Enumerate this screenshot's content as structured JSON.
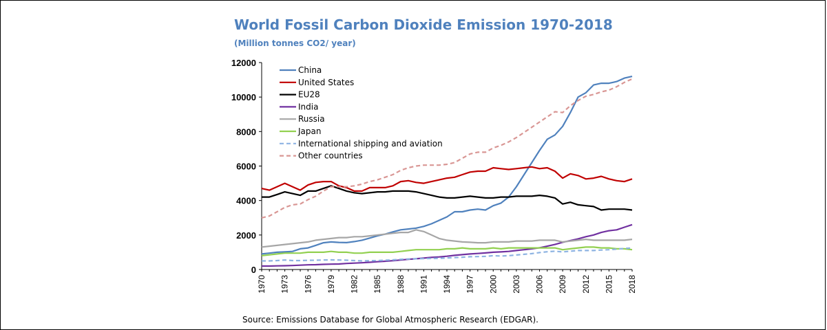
{
  "chart_data": {
    "type": "line",
    "title": "World Fossil Carbon Dioxide Emission 1970-2018",
    "subtitle": "(Million tonnes CO2/ year)",
    "source": "Source: Emissions Database for Global Atmospheric Research (EDGAR).",
    "xlim": [
      1970,
      2018
    ],
    "ylim": [
      0,
      12000
    ],
    "y_ticks": [
      0,
      2000,
      4000,
      6000,
      8000,
      10000,
      12000
    ],
    "x_ticks": [
      1970,
      1973,
      1976,
      1979,
      1982,
      1985,
      1988,
      1991,
      1994,
      1997,
      2000,
      2003,
      2006,
      2009,
      2012,
      2015,
      2018
    ],
    "grid": false,
    "legend_position": "top-left",
    "x": [
      1970,
      1971,
      1972,
      1973,
      1974,
      1975,
      1976,
      1977,
      1978,
      1979,
      1980,
      1981,
      1982,
      1983,
      1984,
      1985,
      1986,
      1987,
      1988,
      1989,
      1990,
      1991,
      1992,
      1993,
      1994,
      1995,
      1996,
      1997,
      1998,
      1999,
      2000,
      2001,
      2002,
      2003,
      2004,
      2005,
      2006,
      2007,
      2008,
      2009,
      2010,
      2011,
      2012,
      2013,
      2014,
      2015,
      2016,
      2017,
      2018
    ],
    "series": [
      {
        "name": "China",
        "color": "#4f81bd",
        "dash": false,
        "values": [
          900,
          950,
          1000,
          1020,
          1050,
          1200,
          1250,
          1400,
          1550,
          1600,
          1570,
          1560,
          1620,
          1700,
          1820,
          1950,
          2050,
          2180,
          2300,
          2350,
          2400,
          2500,
          2650,
          2850,
          3050,
          3350,
          3350,
          3450,
          3500,
          3450,
          3700,
          3850,
          4200,
          4800,
          5500,
          6200,
          6900,
          7550,
          7800,
          8300,
          9100,
          10000,
          10250,
          10700,
          10800,
          10800,
          10900,
          11100,
          11200
        ]
      },
      {
        "name": "United States",
        "color": "#c00000",
        "dash": false,
        "values": [
          4700,
          4600,
          4800,
          5000,
          4800,
          4600,
          4900,
          5050,
          5100,
          5100,
          4850,
          4750,
          4550,
          4550,
          4750,
          4750,
          4750,
          4850,
          5100,
          5150,
          5050,
          5000,
          5100,
          5200,
          5300,
          5350,
          5500,
          5650,
          5700,
          5700,
          5900,
          5850,
          5800,
          5850,
          5900,
          5950,
          5850,
          5900,
          5700,
          5300,
          5550,
          5450,
          5250,
          5300,
          5400,
          5250,
          5150,
          5100,
          5250
        ]
      },
      {
        "name": "EU28",
        "color": "#000000",
        "dash": false,
        "values": [
          4200,
          4200,
          4350,
          4500,
          4400,
          4300,
          4550,
          4550,
          4700,
          4850,
          4700,
          4550,
          4450,
          4400,
          4450,
          4500,
          4500,
          4550,
          4550,
          4550,
          4500,
          4400,
          4300,
          4200,
          4150,
          4150,
          4200,
          4250,
          4200,
          4150,
          4150,
          4200,
          4200,
          4250,
          4250,
          4250,
          4300,
          4250,
          4150,
          3800,
          3900,
          3750,
          3700,
          3650,
          3450,
          3500,
          3500,
          3500,
          3450
        ]
      },
      {
        "name": "India",
        "color": "#7030a0",
        "dash": false,
        "values": [
          200,
          200,
          210,
          220,
          230,
          250,
          270,
          280,
          300,
          310,
          320,
          350,
          370,
          390,
          420,
          450,
          480,
          510,
          550,
          590,
          620,
          660,
          700,
          730,
          770,
          820,
          860,
          900,
          930,
          960,
          1000,
          1020,
          1050,
          1100,
          1150,
          1200,
          1260,
          1350,
          1450,
          1580,
          1680,
          1780,
          1900,
          2000,
          2150,
          2250,
          2300,
          2450,
          2600
        ]
      },
      {
        "name": "Russia",
        "color": "#a6a6a6",
        "dash": false,
        "values": [
          1300,
          1350,
          1400,
          1450,
          1500,
          1550,
          1600,
          1700,
          1750,
          1800,
          1850,
          1850,
          1900,
          1900,
          1950,
          2000,
          2050,
          2100,
          2150,
          2150,
          2300,
          2200,
          2000,
          1800,
          1700,
          1650,
          1600,
          1580,
          1550,
          1550,
          1600,
          1600,
          1600,
          1650,
          1650,
          1650,
          1700,
          1700,
          1700,
          1600,
          1650,
          1700,
          1750,
          1700,
          1700,
          1700,
          1700,
          1700,
          1750
        ]
      },
      {
        "name": "Japan",
        "color": "#92d050",
        "dash": false,
        "values": [
          800,
          850,
          900,
          950,
          950,
          950,
          1000,
          1000,
          1000,
          1050,
          1000,
          1000,
          950,
          950,
          1000,
          1000,
          1000,
          1000,
          1050,
          1100,
          1150,
          1150,
          1150,
          1150,
          1200,
          1200,
          1250,
          1200,
          1200,
          1200,
          1250,
          1200,
          1250,
          1250,
          1250,
          1250,
          1250,
          1250,
          1250,
          1150,
          1200,
          1250,
          1300,
          1300,
          1250,
          1250,
          1200,
          1200,
          1150
        ]
      },
      {
        "name": "International shipping and aviation",
        "color": "#8db3e2",
        "dash": true,
        "values": [
          500,
          500,
          520,
          550,
          520,
          520,
          530,
          540,
          550,
          560,
          550,
          540,
          520,
          500,
          510,
          520,
          540,
          560,
          590,
          610,
          620,
          630,
          640,
          650,
          670,
          690,
          710,
          740,
          750,
          760,
          800,
          780,
          800,
          840,
          880,
          920,
          980,
          1030,
          1060,
          1020,
          1060,
          1100,
          1100,
          1100,
          1130,
          1150,
          1180,
          1220,
          1250
        ]
      },
      {
        "name": "Other countries",
        "color": "#d99694",
        "dash": true,
        "values": [
          3000,
          3100,
          3350,
          3600,
          3750,
          3800,
          4050,
          4250,
          4550,
          4800,
          4800,
          4800,
          4850,
          4950,
          5100,
          5200,
          5350,
          5500,
          5750,
          5900,
          6000,
          6050,
          6050,
          6050,
          6100,
          6200,
          6450,
          6700,
          6800,
          6800,
          7050,
          7200,
          7400,
          7650,
          7950,
          8250,
          8550,
          8850,
          9150,
          9100,
          9500,
          9800,
          10050,
          10150,
          10300,
          10400,
          10600,
          10850,
          11050
        ]
      }
    ]
  }
}
